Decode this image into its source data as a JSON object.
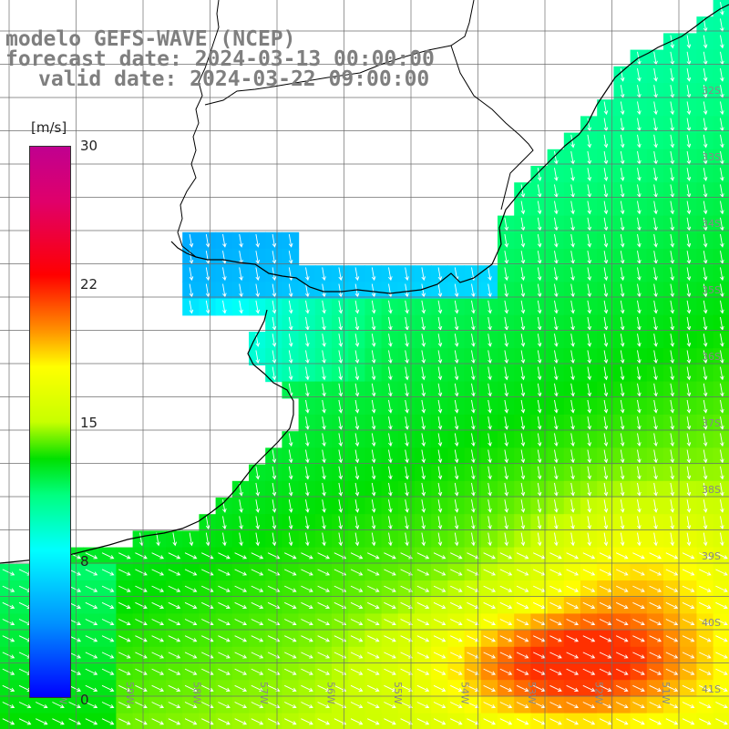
{
  "header": {
    "line1": "modelo GEFS-WAVE (NCEP)",
    "line2": "forecast date: 2024-03-13 00:00:00",
    "line3": "valid date: 2024-03-22 09:00:00"
  },
  "colorbar": {
    "unit": "[m/s]",
    "ticks": [
      "30",
      "22",
      "15",
      "8",
      "0"
    ],
    "stops": [
      {
        "v": 0,
        "c": "#0000ff"
      },
      {
        "v": 4,
        "c": "#0090ff"
      },
      {
        "v": 8,
        "c": "#00ffff"
      },
      {
        "v": 11,
        "c": "#00ff80"
      },
      {
        "v": 13,
        "c": "#00e000"
      },
      {
        "v": 15,
        "c": "#c8ff00"
      },
      {
        "v": 18,
        "c": "#ffff00"
      },
      {
        "v": 20,
        "c": "#ff9000"
      },
      {
        "v": 23,
        "c": "#ff0000"
      },
      {
        "v": 27,
        "c": "#e0006a"
      },
      {
        "v": 30,
        "c": "#c00090"
      }
    ]
  },
  "lat_labels": [
    "32S",
    "33S",
    "34S",
    "35S",
    "36S",
    "37S",
    "38S",
    "39S",
    "40S",
    "41S"
  ],
  "lon_labels": [
    "61W",
    "60W",
    "59W",
    "58W",
    "57W",
    "56W",
    "55W",
    "54W",
    "53W",
    "52W",
    "51W"
  ],
  "colors": {
    "land": "#ffffff",
    "grid": "#6e6e6e",
    "coast": "#000000",
    "arrow": "#ffffff"
  }
}
